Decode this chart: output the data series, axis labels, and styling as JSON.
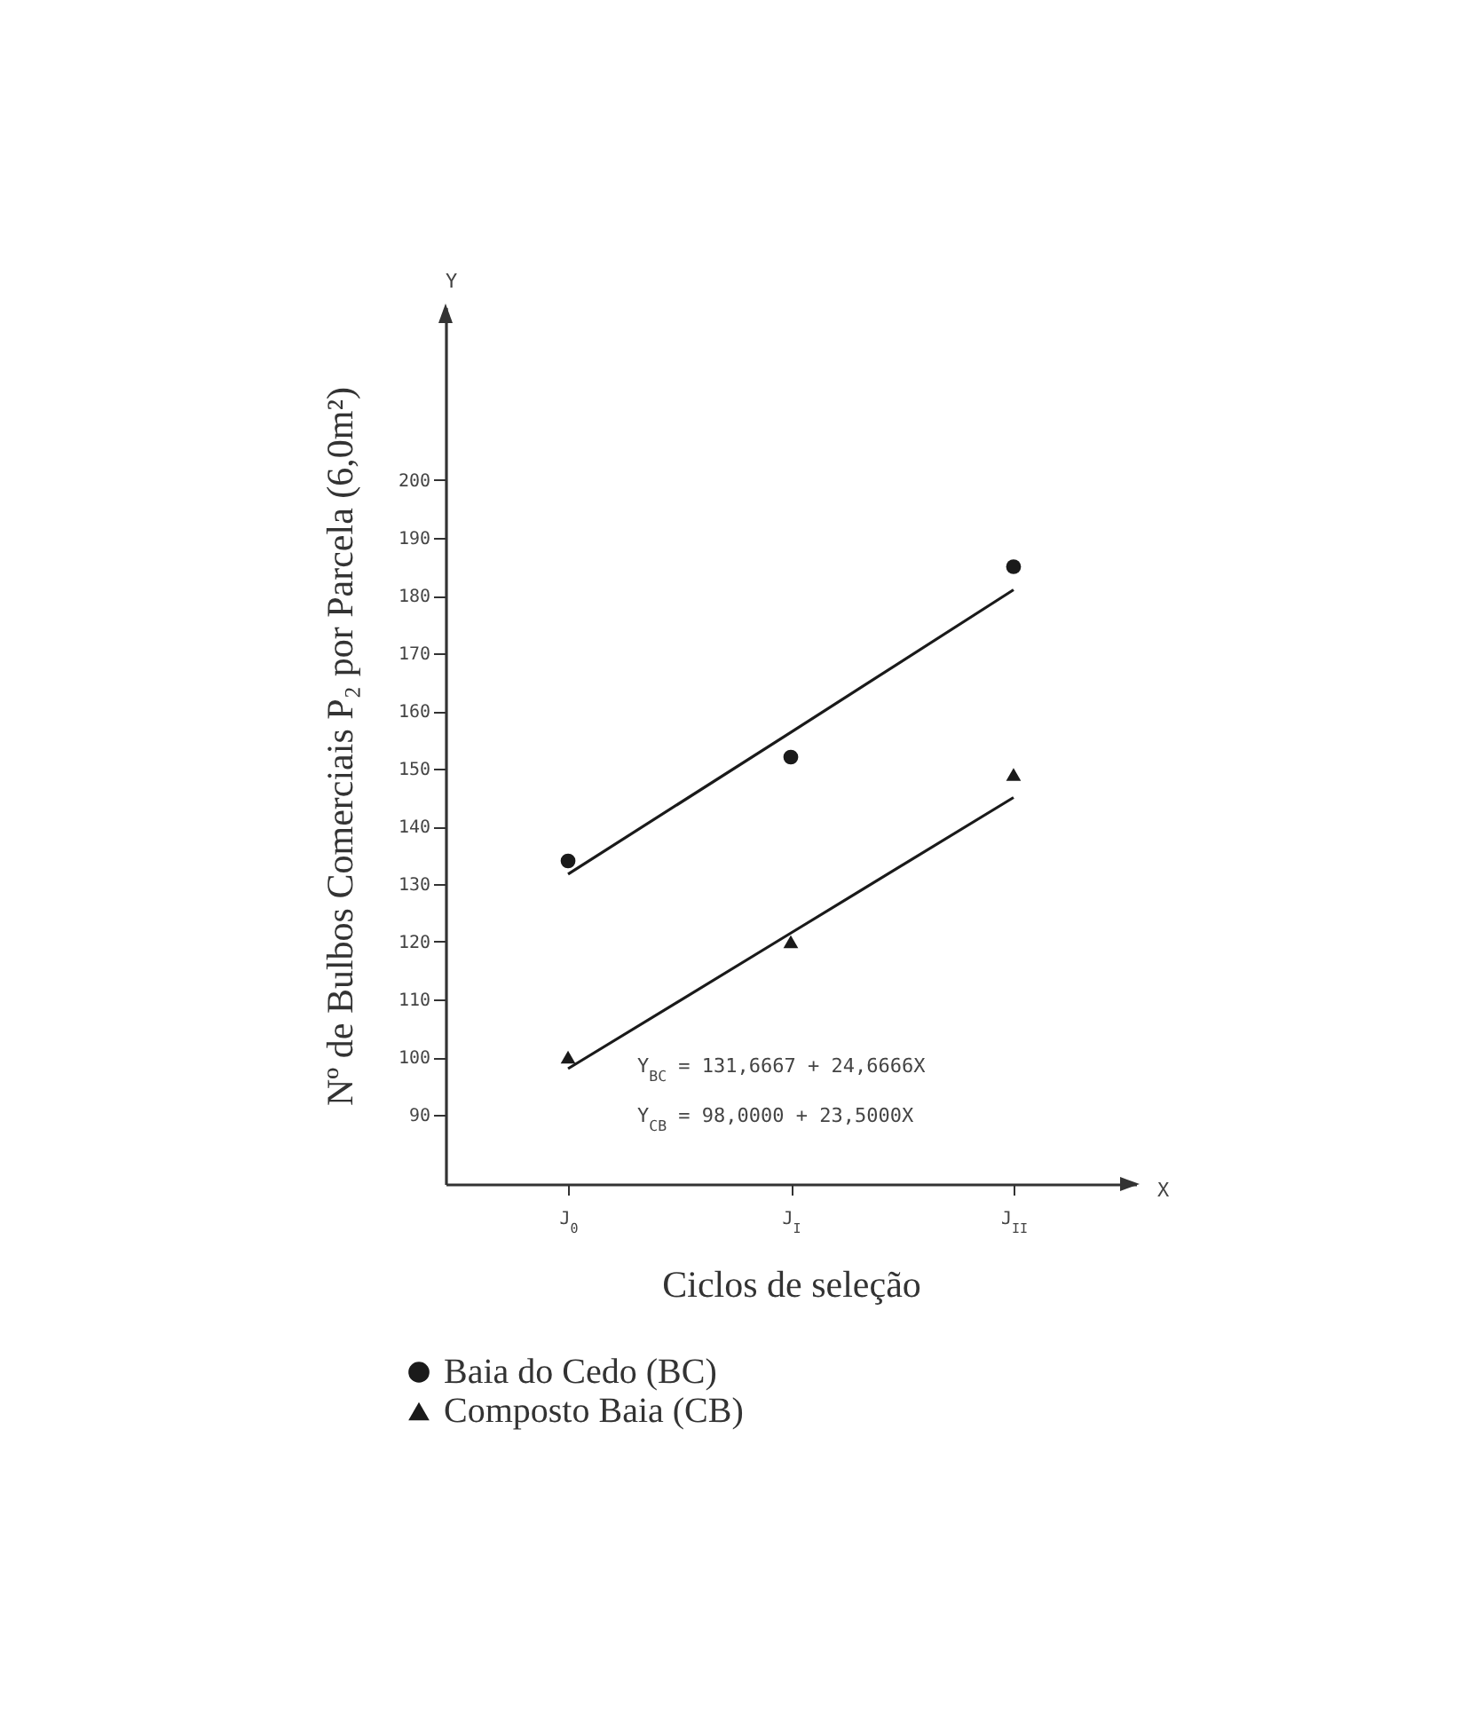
{
  "chart_data": {
    "type": "scatter",
    "xlabel": "Ciclos de seleção",
    "ylabel": "Nº de Bulbos Comerciais P₂ por Parcela (6,0m²)",
    "categories": [
      "J$_{0}$",
      "J$_{I}$",
      "J$_{II}$"
    ],
    "ylim": [
      78,
      230
    ],
    "yticks": [
      90,
      100,
      110,
      120,
      130,
      140,
      150,
      160,
      170,
      180,
      190,
      200
    ],
    "grid": false,
    "legend": "bottom left",
    "series": [
      {
        "name": "Baia do Cedo (BC)",
        "color": "#1a1a1a",
        "marker": "circle",
        "values": [
          134,
          152,
          185
        ]
      },
      {
        "name": "Composto Baia (CB)",
        "color": "#1a1a1a",
        "marker": "triangle",
        "values": [
          100,
          120,
          149
        ]
      },
      {
        "type": "line",
        "color": "#1a1a1a",
        "values": [
          131.7,
          156.3,
          181
        ]
      },
      {
        "type": "line",
        "color": "#1a1a1a",
        "values": [
          98,
          121.5,
          145
        ]
      }
    ],
    "annotations": [
      "Y",
      "X",
      "Y$_{BC}$ = 131,6667 + 24,6666X",
      "Y$_{CB}$ =  98,0000 + 23,5000X"
    ]
  }
}
